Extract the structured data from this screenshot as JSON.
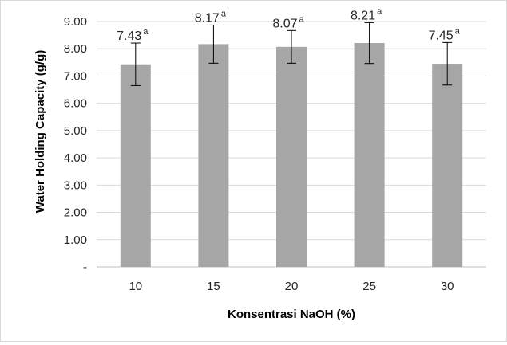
{
  "chart_data": {
    "type": "bar",
    "categories": [
      "10",
      "15",
      "20",
      "25",
      "30"
    ],
    "values": [
      7.43,
      8.17,
      8.07,
      8.21,
      7.45
    ],
    "errors": [
      0.78,
      0.7,
      0.6,
      0.75,
      0.78
    ],
    "data_labels": [
      "7.43",
      "8.17",
      "8.07",
      "8.21",
      "7.45"
    ],
    "superscripts": [
      "a",
      "a",
      "a",
      "a",
      "a"
    ],
    "xlabel": "Konsentrasi NaOH (%)",
    "ylabel": "Water Holding Capacity (g/g)",
    "ylim": [
      0,
      9
    ],
    "yticks": [
      "-",
      "1.00",
      "2.00",
      "3.00",
      "4.00",
      "5.00",
      "6.00",
      "7.00",
      "8.00",
      "9.00"
    ],
    "grid": true,
    "legend": "none",
    "colors": {
      "bar": "#a6a6a6",
      "grid": "#d9d9d9",
      "axis": "#bfbfbf",
      "error": "#000000"
    }
  }
}
